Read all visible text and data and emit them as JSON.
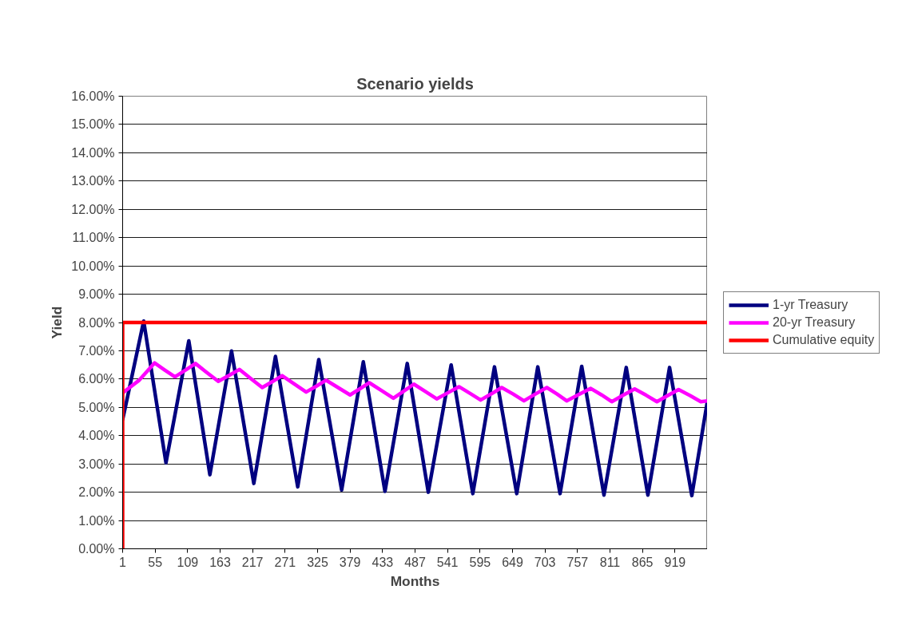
{
  "chart_data": {
    "type": "line",
    "title": "Scenario yields",
    "xlabel": "Months",
    "ylabel": "Yield",
    "xlim": [
      1,
      973
    ],
    "xticks": [
      1,
      55,
      109,
      163,
      217,
      271,
      325,
      379,
      433,
      487,
      541,
      595,
      649,
      703,
      757,
      811,
      865,
      919
    ],
    "ylim": [
      0,
      16
    ],
    "yticks": [
      {
        "value": 0,
        "label": "0.00%"
      },
      {
        "value": 1,
        "label": "1.00%"
      },
      {
        "value": 2,
        "label": "2.00%"
      },
      {
        "value": 3,
        "label": "3.00%"
      },
      {
        "value": 4,
        "label": "4.00%"
      },
      {
        "value": 5,
        "label": "5.00%"
      },
      {
        "value": 6,
        "label": "6.00%"
      },
      {
        "value": 7,
        "label": "7.00%"
      },
      {
        "value": 8,
        "label": "8.00%"
      },
      {
        "value": 9,
        "label": "9.00%"
      },
      {
        "value": 10,
        "label": "10.00%"
      },
      {
        "value": 11,
        "label": "11.00%"
      },
      {
        "value": 12,
        "label": "12.00%"
      },
      {
        "value": 13,
        "label": "13.00%"
      },
      {
        "value": 14,
        "label": "14.00%"
      },
      {
        "value": 15,
        "label": "15.00%"
      },
      {
        "value": 16,
        "label": "16.00%"
      }
    ],
    "grid": "y",
    "legend": "right",
    "marker": "none",
    "line_style": "solid",
    "series": [
      {
        "name": "1-yr Treasury",
        "color": "#000080",
        "x": [
          1,
          36,
          73,
          111,
          146,
          182,
          219,
          255,
          292,
          327,
          365,
          401,
          437,
          474,
          509,
          547,
          583,
          619,
          656,
          691,
          728,
          764,
          801,
          838,
          874,
          910,
          947,
          973
        ],
        "values": [
          4.56,
          8.05,
          3.04,
          7.35,
          2.62,
          6.99,
          2.31,
          6.8,
          2.19,
          6.69,
          2.08,
          6.61,
          2.03,
          6.55,
          2.0,
          6.5,
          1.95,
          6.43,
          1.95,
          6.43,
          1.95,
          6.45,
          1.9,
          6.41,
          1.9,
          6.41,
          1.88,
          5.23
        ]
      },
      {
        "name": "20-yr Treasury",
        "color": "#ff00ff",
        "x": [
          1,
          28,
          54,
          71,
          88,
          105,
          122,
          141,
          160,
          178,
          195,
          214,
          233,
          250,
          266,
          286,
          306,
          323,
          339,
          359,
          379,
          395,
          411,
          431,
          451,
          468,
          485,
          504,
          523,
          542,
          560,
          578,
          596,
          614,
          631,
          650,
          668,
          687,
          706,
          723,
          739,
          759,
          779,
          797,
          814,
          833,
          852,
          871,
          889,
          907,
          925,
          944,
          962,
          973
        ],
        "values": [
          5.51,
          5.95,
          6.57,
          6.32,
          6.08,
          6.31,
          6.55,
          6.23,
          5.92,
          6.13,
          6.34,
          6.02,
          5.7,
          5.91,
          6.12,
          5.83,
          5.54,
          5.75,
          5.96,
          5.7,
          5.44,
          5.65,
          5.87,
          5.6,
          5.32,
          5.57,
          5.82,
          5.56,
          5.3,
          5.52,
          5.73,
          5.5,
          5.26,
          5.48,
          5.7,
          5.47,
          5.23,
          5.47,
          5.7,
          5.47,
          5.23,
          5.45,
          5.67,
          5.44,
          5.2,
          5.43,
          5.65,
          5.43,
          5.2,
          5.42,
          5.63,
          5.42,
          5.2,
          5.23
        ]
      },
      {
        "name": "Cumulative equity",
        "color": "#ff0000",
        "x": [
          1,
          1,
          973
        ],
        "values": [
          0,
          8,
          8
        ]
      }
    ]
  }
}
